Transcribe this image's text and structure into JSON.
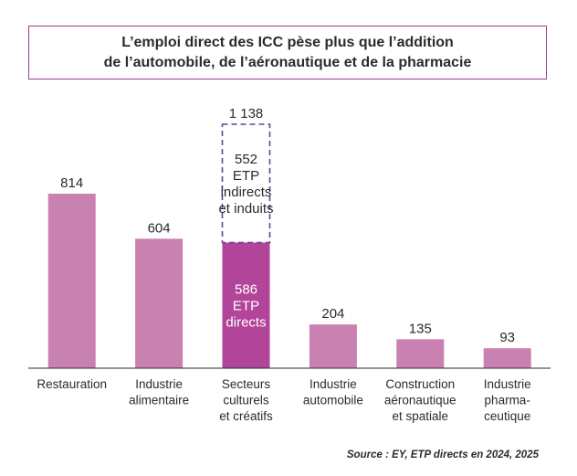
{
  "chart_data": {
    "type": "bar",
    "title_lines": [
      "L’emploi direct des ICC pèse plus que l’addition",
      "de l’automobile, de l’aéronautique et de la pharmacie"
    ],
    "categories": [
      [
        "Restauration"
      ],
      [
        "Industrie",
        "alimentaire"
      ],
      [
        "Secteurs",
        "culturels",
        "et créatifs"
      ],
      [
        "Industrie",
        "automobile"
      ],
      [
        "Construction",
        "aéronautique",
        "et spatiale"
      ],
      [
        "Industrie",
        "pharma-",
        "ceutique"
      ]
    ],
    "values": [
      814,
      604,
      586,
      204,
      135,
      93
    ],
    "value_labels": [
      "814",
      "604",
      "",
      "204",
      "135",
      "93"
    ],
    "highlight": {
      "category_index": 2,
      "direct_value": 586,
      "direct_label": [
        "586",
        "ETP",
        "directs"
      ],
      "indirect_value": 552,
      "indirect_label": [
        "552",
        "ETP",
        "indirects",
        "et induits"
      ],
      "total_label": "1 138"
    },
    "ylim": [
      0,
      1138
    ],
    "xlabel": "",
    "ylabel": "",
    "grid": false,
    "colors": {
      "bar": "#c981b1",
      "highlight_bar": "#b2449a",
      "dashed_outline": "#6a3f91",
      "axis": "#2b2b2b",
      "title_border": "#9b3d8a"
    }
  },
  "source": "Source : EY, ETP directs en 2024, 2025"
}
